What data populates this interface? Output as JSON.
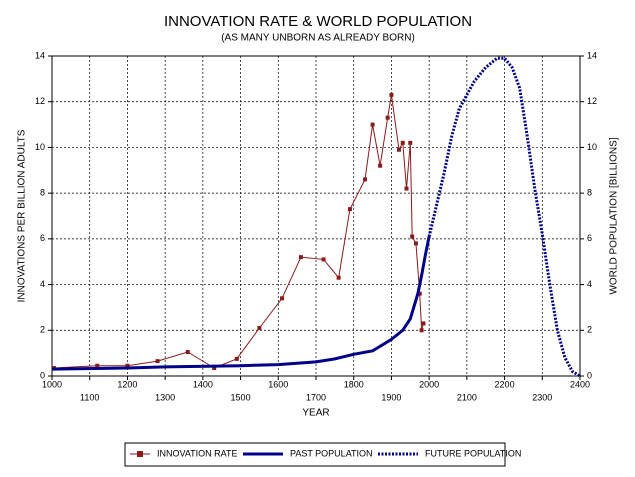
{
  "chart_data": {
    "type": "line",
    "title": "INNOVATION RATE & WORLD POPULATION",
    "subtitle": "(AS MANY UNBORN AS ALREADY BORN)",
    "xlabel": "YEAR",
    "ylabel": "INNOVATIONS PER BILLION ADULTS",
    "y2label": "WORLD POPULATION [BILLIONS]",
    "xlim": [
      1000,
      2400
    ],
    "xticks": [
      1000,
      1100,
      1200,
      1300,
      1400,
      1500,
      1600,
      1700,
      1800,
      1900,
      2000,
      2100,
      2200,
      2300,
      2400
    ],
    "ylim": [
      0,
      14
    ],
    "yticks": [
      0,
      2,
      4,
      6,
      8,
      10,
      12,
      14
    ],
    "y2lim": [
      0,
      14
    ],
    "y2ticks": [
      0,
      2,
      4,
      6,
      8,
      10,
      12,
      14
    ],
    "grid": true,
    "legend": "bottom",
    "series": [
      {
        "name": "INNOVATION RATE",
        "color": "#8b1a1a",
        "marker": "square",
        "dash": "solid",
        "x": [
          1005,
          1120,
          1200,
          1280,
          1360,
          1430,
          1490,
          1550,
          1610,
          1660,
          1720,
          1760,
          1790,
          1830,
          1850,
          1870,
          1890,
          1900,
          1920,
          1930,
          1940,
          1950,
          1955,
          1965,
          1975,
          1980,
          1985
        ],
        "values": [
          0.35,
          0.45,
          0.45,
          0.65,
          1.05,
          0.35,
          0.75,
          2.1,
          3.4,
          5.2,
          5.1,
          4.3,
          7.3,
          8.6,
          11.0,
          9.2,
          11.3,
          12.3,
          9.9,
          10.2,
          8.2,
          10.2,
          6.1,
          5.8,
          3.6,
          2.0,
          2.3
        ]
      },
      {
        "name": "PAST POPULATION",
        "color": "#00008b",
        "marker": "none",
        "dash": "solid",
        "axis": "y2",
        "x": [
          1000,
          1200,
          1300,
          1500,
          1600,
          1700,
          1750,
          1800,
          1850,
          1900,
          1930,
          1950,
          1970,
          1980,
          1990,
          2000
        ],
        "values": [
          0.3,
          0.35,
          0.4,
          0.45,
          0.5,
          0.62,
          0.75,
          0.95,
          1.1,
          1.6,
          2.0,
          2.5,
          3.6,
          4.4,
          5.3,
          6.1
        ]
      },
      {
        "name": "FUTURE POPULATION",
        "color": "#00008b",
        "marker": "none",
        "dash": "dotted",
        "axis": "y2",
        "x": [
          2000,
          2020,
          2040,
          2060,
          2080,
          2100,
          2120,
          2150,
          2180,
          2200,
          2220,
          2240,
          2260,
          2280,
          2300,
          2320,
          2340,
          2360,
          2380,
          2400
        ],
        "values": [
          6.1,
          7.5,
          8.9,
          10.5,
          11.7,
          12.3,
          12.9,
          13.5,
          13.9,
          13.9,
          13.5,
          12.6,
          10.5,
          8.2,
          6.2,
          4.0,
          2.0,
          0.8,
          0.2,
          0
        ]
      }
    ]
  }
}
